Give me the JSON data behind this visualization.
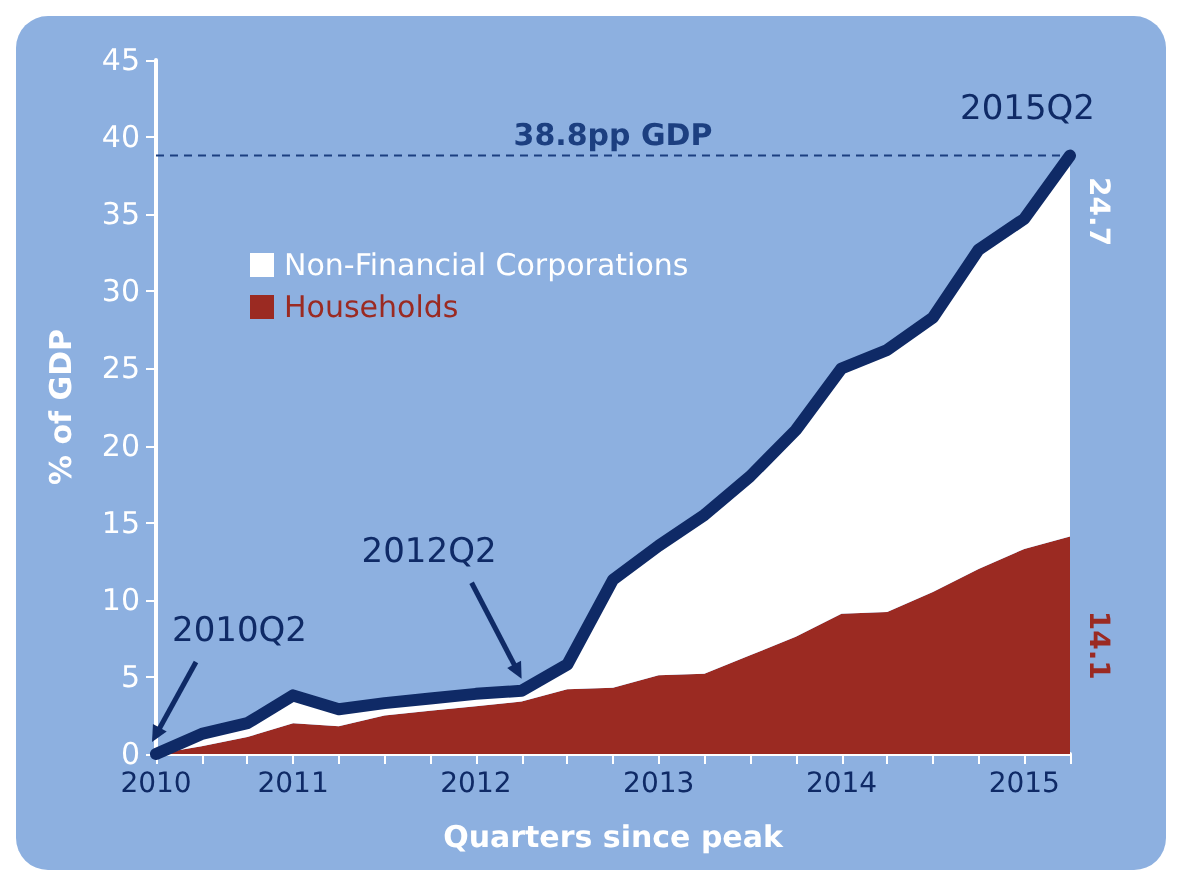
{
  "chart_data": {
    "type": "area",
    "stacked": true,
    "xlabel": "Quarters since peak",
    "ylabel": "% of GDP",
    "categories": [
      "2010",
      null,
      null,
      "2011",
      null,
      null,
      null,
      "2012",
      null,
      null,
      null,
      "2013",
      null,
      null,
      null,
      "2014",
      null,
      null,
      null,
      "2015",
      null
    ],
    "series": [
      {
        "name": "Households",
        "color": "#9b2a22",
        "values": [
          0,
          0.5,
          1.1,
          2.0,
          1.8,
          2.5,
          2.8,
          3.1,
          3.4,
          4.2,
          4.3,
          5.1,
          5.2,
          6.4,
          7.6,
          9.1,
          9.2,
          10.5,
          12.0,
          13.3,
          14.1
        ],
        "value_labels": [
          null,
          null,
          null,
          null,
          null,
          null,
          null,
          null,
          null,
          null,
          null,
          null,
          null,
          null,
          null,
          null,
          null,
          null,
          null,
          null,
          "14.1"
        ]
      },
      {
        "name": "Non-Financial Corporations",
        "color": "#ffffff",
        "values": [
          0,
          0.8,
          0.9,
          1.8,
          1.1,
          0.8,
          0.8,
          0.8,
          0.7,
          1.6,
          7.0,
          8.4,
          10.3,
          11.6,
          13.4,
          15.9,
          17.0,
          17.8,
          20.7,
          21.4,
          24.7
        ],
        "value_labels": [
          null,
          null,
          null,
          null,
          null,
          null,
          null,
          null,
          null,
          null,
          null,
          null,
          null,
          null,
          null,
          null,
          null,
          null,
          null,
          null,
          "24.7"
        ]
      }
    ],
    "ylim": [
      0,
      45
    ],
    "yticks": [
      0,
      5,
      10,
      15,
      20,
      25,
      30,
      35,
      40,
      45
    ],
    "grid": false,
    "legend": "top left",
    "marker": "none",
    "ref_lines": [
      {
        "axis": "y",
        "value": 38.8,
        "label": "38.8pp GDP",
        "color": "#1c3f80",
        "line_style": "dashed"
      }
    ],
    "annotations": [
      "2010Q2",
      "2012Q2",
      "2015Q2"
    ]
  }
}
